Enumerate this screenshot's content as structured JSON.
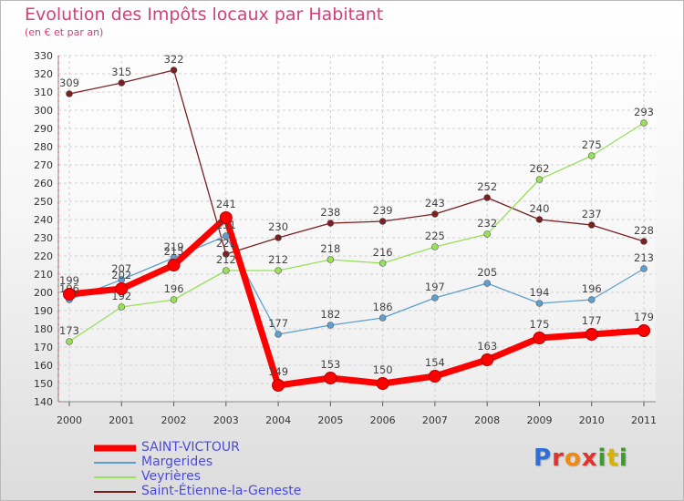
{
  "header": {
    "title": "Evolution des Impôts locaux par Habitant",
    "subtitle": "(en € et par an)"
  },
  "logo": {
    "letters": [
      "P",
      "r",
      "o",
      "x",
      "i",
      "t",
      "i"
    ],
    "colors": [
      "#2f6fd6",
      "#e0332f",
      "#f08a14",
      "#e0332f",
      "#3c9c2c",
      "#d4b40a",
      "#3c9c2c"
    ]
  },
  "chart_data": {
    "type": "line",
    "title": "Evolution des Impôts locaux par Habitant",
    "subtitle": "(en € et par an)",
    "xlabel": "",
    "ylabel": "",
    "categories": [
      "2000",
      "2001",
      "2002",
      "2003",
      "2004",
      "2005",
      "2006",
      "2007",
      "2008",
      "2009",
      "2010",
      "2011"
    ],
    "ylim": [
      140,
      330
    ],
    "yticks": [
      "140",
      "150",
      "160",
      "170",
      "180",
      "190",
      "200",
      "210",
      "220",
      "230",
      "240",
      "250",
      "260",
      "270",
      "280",
      "290",
      "300",
      "310",
      "320",
      "330"
    ],
    "grid": true,
    "legend_position": "bottom-left",
    "series": [
      {
        "name": "Saint-Étienne-la-Geneste",
        "color": "#7a1f22",
        "values": [
          309,
          315,
          322,
          221,
          230,
          238,
          239,
          243,
          252,
          240,
          237,
          228
        ]
      },
      {
        "name": "Veyrières",
        "color": "#99e05a",
        "values": [
          173,
          192,
          196,
          212,
          212,
          218,
          216,
          225,
          232,
          262,
          275,
          293
        ]
      },
      {
        "name": "Margerides",
        "color": "#5f9fcf",
        "values": [
          196,
          207,
          219,
          231,
          177,
          182,
          186,
          197,
          205,
          194,
          196,
          213
        ]
      },
      {
        "name": "SAINT-VICTOUR",
        "color": "#ff0000",
        "values": [
          199,
          202,
          215,
          241,
          149,
          153,
          150,
          154,
          163,
          175,
          177,
          179
        ]
      }
    ],
    "legend": [
      "SAINT-VICTOUR",
      "Margerides",
      "Veyrières",
      "Saint-Étienne-la-Geneste"
    ]
  }
}
